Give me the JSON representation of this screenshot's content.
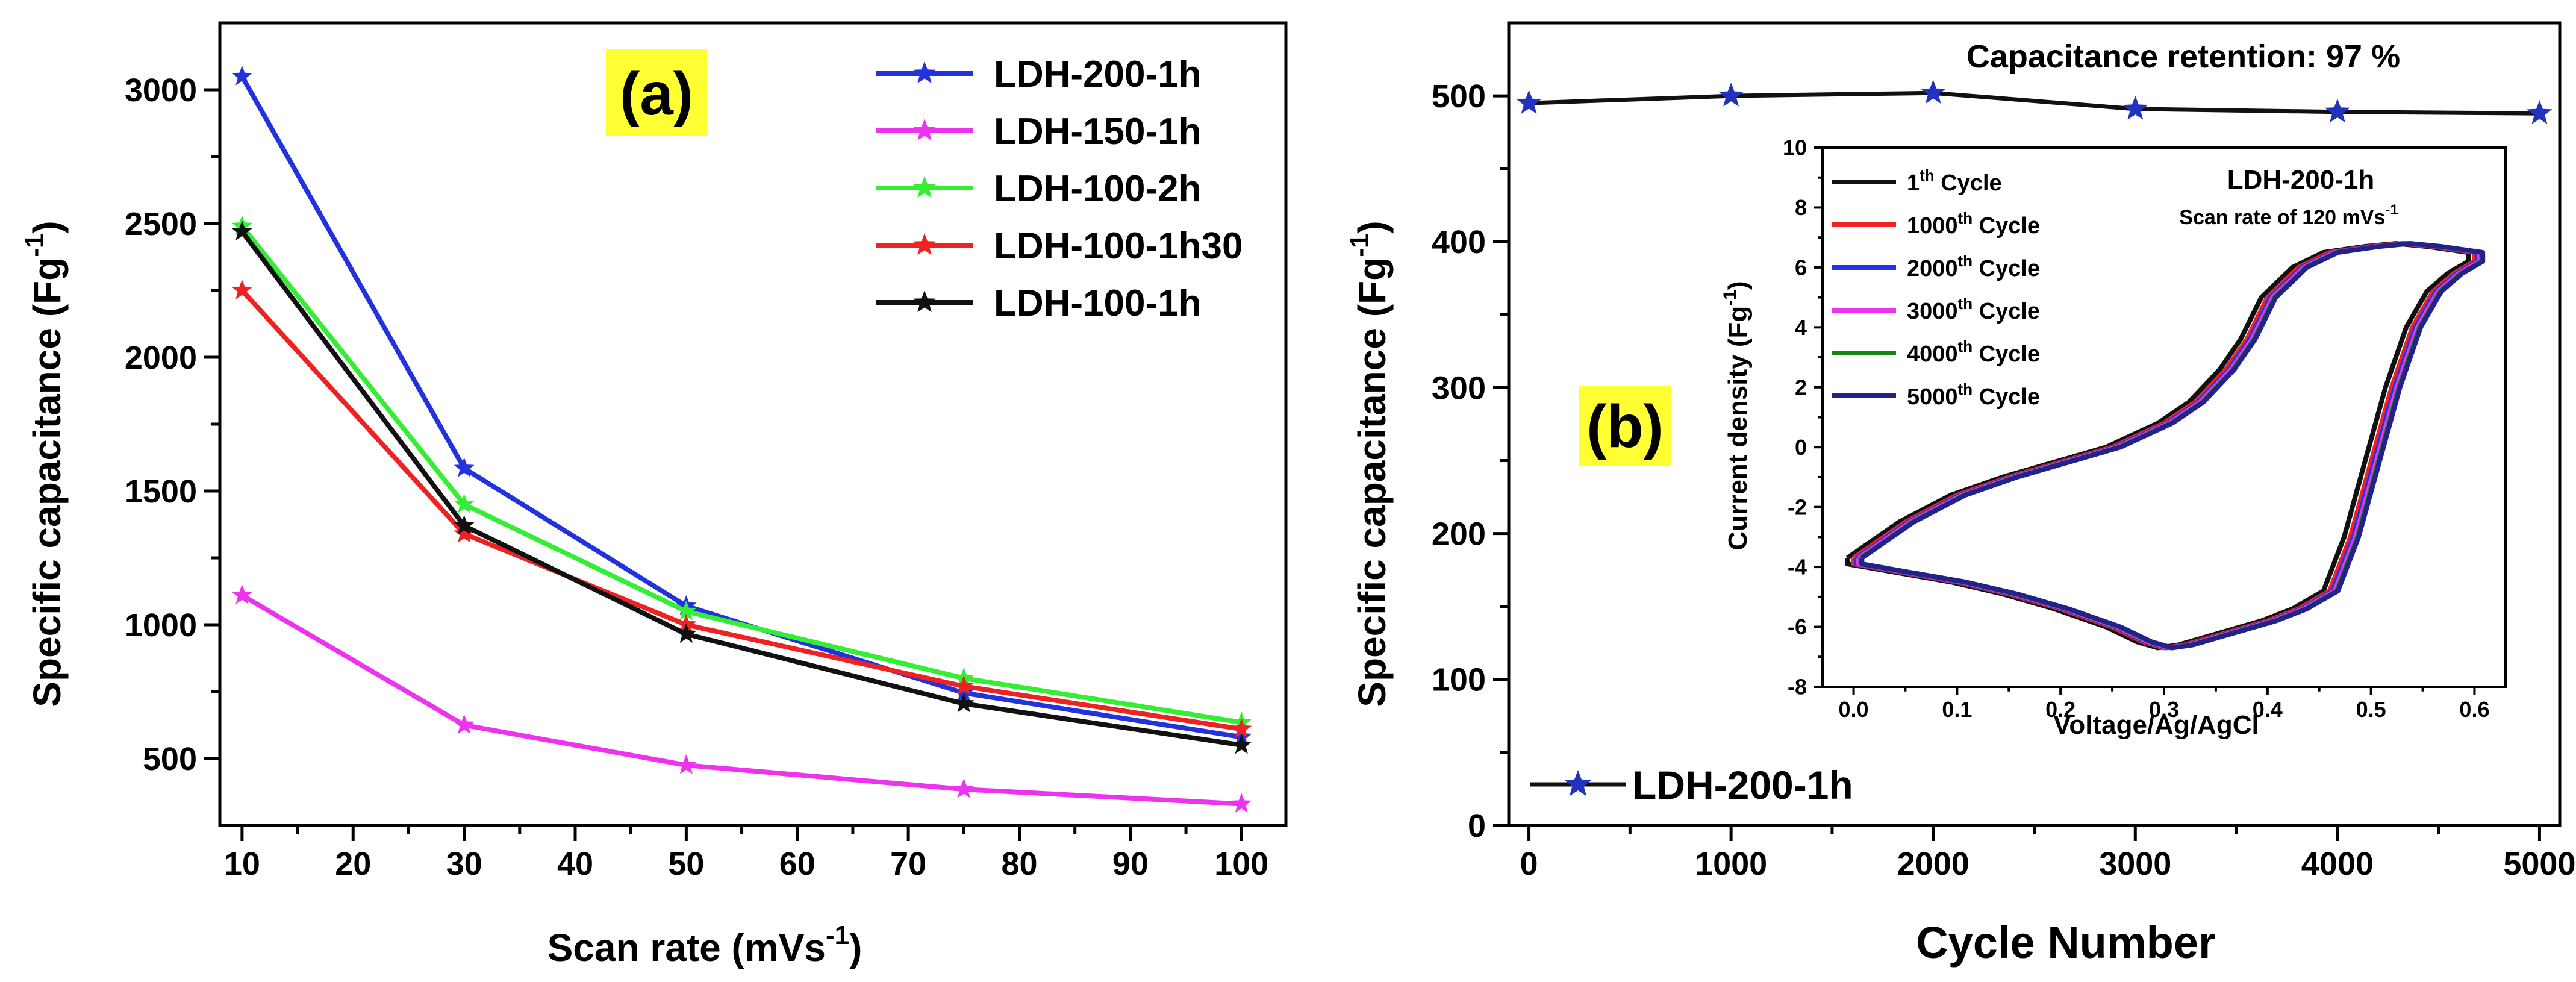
{
  "chart_data": [
    {
      "type": "line",
      "panel_label": "(a)",
      "panel_label_bg": "#ffff33",
      "xlabel": "Scan rate (mVs",
      "xlabel_sup": "-1",
      "xlabel_end": ")",
      "ylabel": "Specific capacitance (Fg",
      "ylabel_sup": "-1",
      "ylabel_end": ")",
      "xlim": [
        8,
        104
      ],
      "ylim": [
        250,
        3250
      ],
      "xticks": [
        10,
        20,
        30,
        40,
        50,
        60,
        70,
        80,
        90,
        100
      ],
      "yticks": [
        500,
        1000,
        1500,
        2000,
        2500,
        3000
      ],
      "grid": false,
      "legend_position": "top-right",
      "x": [
        10,
        30,
        50,
        75,
        100
      ],
      "series": [
        {
          "name": "LDH-200-1h",
          "color": "#2233dd",
          "values": [
            3050,
            1585,
            1070,
            745,
            580
          ]
        },
        {
          "name": "LDH-150-1h",
          "color": "#ee33ee",
          "values": [
            1110,
            625,
            475,
            385,
            330
          ]
        },
        {
          "name": "LDH-100-2h",
          "color": "#33ee33",
          "values": [
            2490,
            1450,
            1050,
            800,
            635
          ]
        },
        {
          "name": "LDH-100-1h30",
          "color": "#ee2222",
          "values": [
            2250,
            1340,
            1000,
            770,
            610
          ]
        },
        {
          "name": "LDH-100-1h",
          "color": "#111111",
          "values": [
            2470,
            1370,
            965,
            705,
            550
          ]
        }
      ]
    },
    {
      "type": "line",
      "panel_label": "(b)",
      "panel_label_bg": "#ffff33",
      "annotation": "Capacitance retention: 97 %",
      "xlabel": "Cycle Number",
      "ylabel": "Specific capacitance (Fg",
      "ylabel_sup": "-1",
      "ylabel_end": ")",
      "xlim": [
        -100,
        5100
      ],
      "ylim": [
        0,
        550
      ],
      "xticks": [
        0,
        1000,
        2000,
        3000,
        4000,
        5000
      ],
      "yticks": [
        0,
        100,
        200,
        300,
        400,
        500
      ],
      "grid": false,
      "legend_position": "bottom-left",
      "x": [
        0,
        1000,
        2000,
        3000,
        4000,
        5000
      ],
      "series": [
        {
          "name": "LDH-200-1h",
          "color": "#111111",
          "marker_color": "#2233bb",
          "values": [
            495,
            500,
            502,
            491,
            489,
            488
          ]
        }
      ]
    },
    {
      "type": "line",
      "inset_of": "(b)",
      "title": "LDH-200-1h",
      "subtitle": "Scan rate of 120 mVs",
      "subtitle_sup": "-1",
      "xlabel": "Voltage/Ag/AgCl",
      "ylabel": "Current density (Fg",
      "ylabel_sup": "-1",
      "ylabel_end": ")",
      "xlim": [
        -0.03,
        0.63
      ],
      "ylim": [
        -8,
        10
      ],
      "xticks": [
        0.0,
        0.1,
        0.2,
        0.3,
        0.4,
        0.5,
        0.6
      ],
      "yticks": [
        -8,
        -6,
        -4,
        -2,
        0,
        2,
        4,
        6,
        8,
        10
      ],
      "grid": false,
      "legend_position": "top-left",
      "curve_upper": {
        "x": [
          0.0,
          0.05,
          0.1,
          0.15,
          0.2,
          0.25,
          0.3,
          0.33,
          0.36,
          0.38,
          0.4,
          0.43,
          0.46,
          0.5,
          0.53,
          0.56,
          0.6
        ],
        "y": [
          -3.7,
          -2.5,
          -1.6,
          -1.0,
          -0.5,
          0.0,
          0.8,
          1.5,
          2.6,
          3.6,
          5.0,
          6.0,
          6.5,
          6.7,
          6.8,
          6.7,
          6.5
        ]
      },
      "curve_lower": {
        "x": [
          0.6,
          0.58,
          0.56,
          0.54,
          0.52,
          0.5,
          0.48,
          0.46,
          0.43,
          0.4,
          0.36,
          0.32,
          0.3,
          0.28,
          0.25,
          0.2,
          0.15,
          0.1,
          0.05,
          0.0
        ],
        "y": [
          6.2,
          5.8,
          5.2,
          4.0,
          2.0,
          -0.5,
          -3.0,
          -4.8,
          -5.4,
          -5.8,
          -6.2,
          -6.6,
          -6.7,
          -6.5,
          -6.0,
          -5.4,
          -4.9,
          -4.5,
          -4.2,
          -3.9
        ]
      },
      "series": [
        {
          "name": "1",
          "suffix": "th",
          "label_end": " Cycle",
          "color": "#111111",
          "shift": -0.006,
          "first_cycle": true
        },
        {
          "name": "1000",
          "suffix": "th",
          "label_end": " Cycle",
          "color": "#ee2222",
          "shift": 0.0
        },
        {
          "name": "2000",
          "suffix": "th",
          "label_end": " Cycle",
          "color": "#2233ee",
          "shift": 0.003
        },
        {
          "name": "3000",
          "suffix": "th",
          "label_end": " Cycle",
          "color": "#ee33ee",
          "shift": 0.005
        },
        {
          "name": "4000",
          "suffix": "th",
          "label_end": " Cycle",
          "color": "#118811",
          "shift": 0.007
        },
        {
          "name": "5000",
          "suffix": "th",
          "label_end": " Cycle",
          "color": "#22228a",
          "shift": 0.008
        }
      ]
    }
  ]
}
